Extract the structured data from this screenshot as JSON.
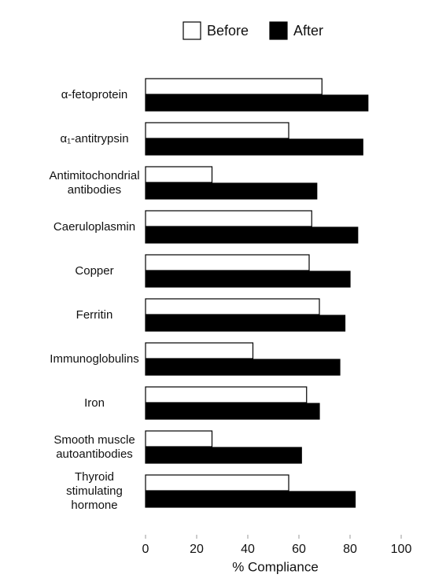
{
  "chart_data": {
    "type": "bar",
    "orientation": "horizontal",
    "x_label": "% Compliance",
    "categories": [
      "α-fetoprotein",
      "α₁-antitrypsin",
      "Antimitochondrial\nantibodies",
      "Caeruloplasmin",
      "Copper",
      "Ferritin",
      "Immunoglobulins",
      "Iron",
      "Smooth muscle\nautoantibodies",
      "Thyroid\nstimulating\nhormone"
    ],
    "series": [
      {
        "name": "Before",
        "color": "#ffffff",
        "values": [
          69,
          56,
          26,
          65,
          64,
          68,
          42,
          63,
          26,
          56
        ]
      },
      {
        "name": "After",
        "color": "#000000",
        "values": [
          87,
          85,
          67,
          83,
          80,
          78,
          76,
          68,
          61,
          82
        ]
      }
    ],
    "xlim": [
      0,
      100
    ],
    "xticks": [
      0,
      20,
      40,
      60,
      80,
      100
    ]
  }
}
